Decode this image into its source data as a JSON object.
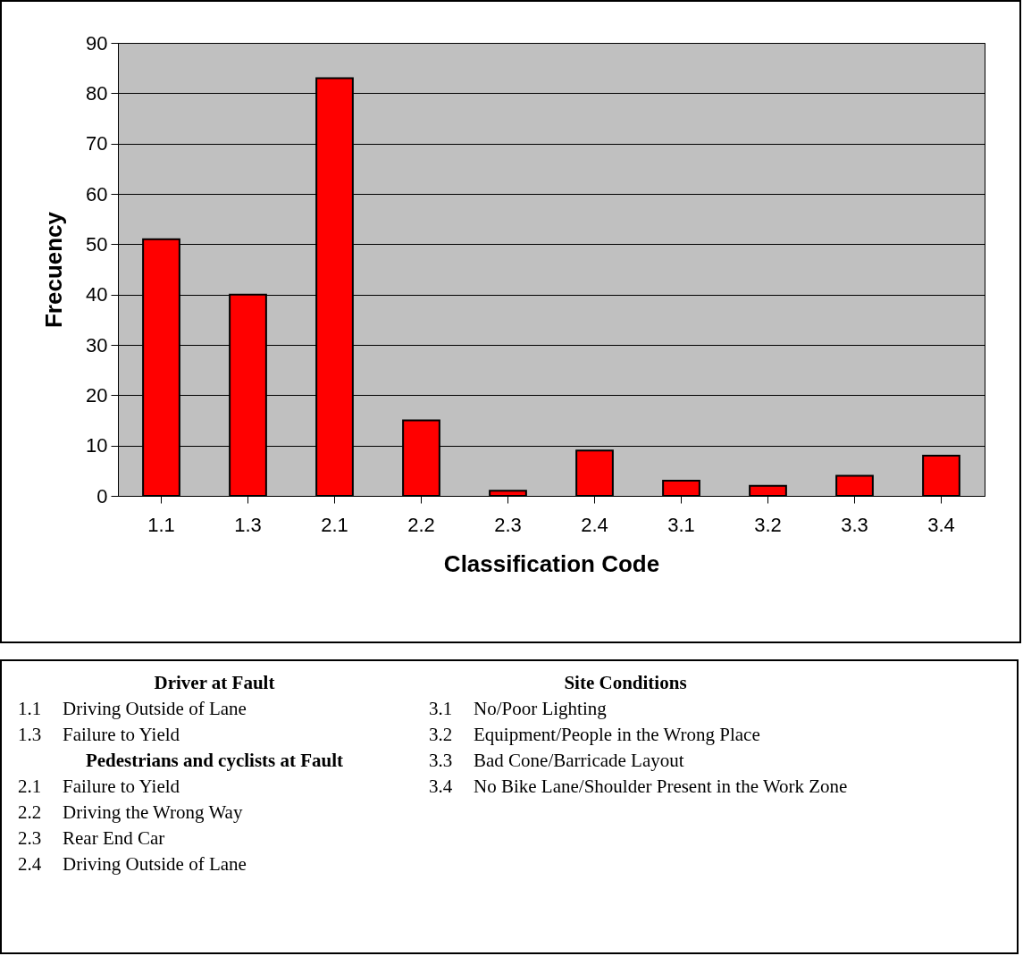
{
  "chart_data": {
    "type": "bar",
    "xlabel": "Classification Code",
    "ylabel": "Frecuency",
    "categories": [
      "1.1",
      "1.3",
      "2.1",
      "2.2",
      "2.3",
      "2.4",
      "3.1",
      "3.2",
      "3.3",
      "3.4"
    ],
    "values": [
      51,
      40,
      83,
      15,
      1,
      9,
      3,
      2,
      4,
      8
    ],
    "color": "#ff0000",
    "ylim": [
      0,
      90
    ],
    "yticks": [
      0,
      10,
      20,
      30,
      40,
      50,
      60,
      70,
      80,
      90
    ],
    "grid": "y",
    "annotations": [
      "Driver at Fault",
      "1.1 Driving Outside of Lane",
      "1.3 Failure to Yield",
      "Pedestrians and cyclists at Fault",
      "2.1 Failure to Yield",
      "2.2 Driving the Wrong Way",
      "2.3 Rear End Car",
      "2.4 Driving Outside of Lane",
      "Site Conditions",
      "3.1 No/Poor Lighting",
      "3.2 Equipment/People in the Wrong Place",
      "3.3 Bad Cone/Barricade Layout",
      "3.4 No Bike Lane/Shoulder Present in the Work Zone"
    ]
  }
}
